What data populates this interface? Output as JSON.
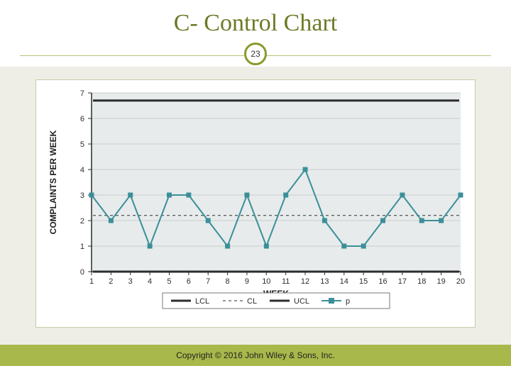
{
  "title": {
    "text": "C- Control Chart",
    "fontsize": 34,
    "color": "#6a7a25"
  },
  "badge": {
    "number": "23",
    "border_color": "#8a9a2a",
    "bg": "#ffffff",
    "text_color": "#333333",
    "fontsize": 12
  },
  "footer": {
    "text": "Copyright © 2016 John Wiley & Sons, Inc.",
    "bg": "#a8b84a",
    "text_color": "#222222",
    "fontsize": 12
  },
  "background_band": "#eeeee6",
  "panel_border": "#c6ccaa",
  "rule_color": "#b9c27a",
  "chart": {
    "type": "control-chart-line",
    "plot_bg": "#e7ebeb",
    "grid_color": "#c9cfce",
    "axis_color": "#2d2d2d",
    "ylabel": "COMPLAINTS PER WEEK",
    "xlabel": "WEEK",
    "label_fontsize": 12,
    "tick_fontsize": 11,
    "ylim": [
      0,
      7
    ],
    "ytick_step": 1,
    "xlim": [
      1,
      20
    ],
    "xticks": [
      1,
      2,
      3,
      4,
      5,
      6,
      7,
      8,
      9,
      10,
      11,
      12,
      13,
      14,
      15,
      16,
      17,
      18,
      19,
      20
    ],
    "series_p": {
      "name": "p",
      "color": "#3b8f99",
      "line_width": 2,
      "marker": "square",
      "marker_size": 7,
      "x": [
        1,
        2,
        3,
        4,
        5,
        6,
        7,
        8,
        9,
        10,
        11,
        12,
        13,
        14,
        15,
        16,
        17,
        18,
        19,
        20
      ],
      "y": [
        3,
        2,
        3,
        1,
        3,
        3,
        2,
        1,
        3,
        1,
        3,
        4,
        2,
        1,
        1,
        2,
        3,
        2,
        2,
        3
      ]
    },
    "lcl": {
      "name": "LCL",
      "value": 0,
      "color": "#2d2d2d",
      "line_width": 3,
      "dash": "none"
    },
    "cl": {
      "name": "CL",
      "value": 2.2,
      "color": "#2d2d2d",
      "line_width": 1,
      "dash": "4,4"
    },
    "ucl": {
      "name": "UCL",
      "value": 6.7,
      "color": "#2c2c2c",
      "line_width": 3,
      "dash": "none"
    },
    "legend": {
      "border": "#7a7a7a",
      "bg": "#ffffff",
      "font_size": 11,
      "items": [
        "LCL",
        "CL",
        "UCL",
        "p"
      ]
    }
  }
}
